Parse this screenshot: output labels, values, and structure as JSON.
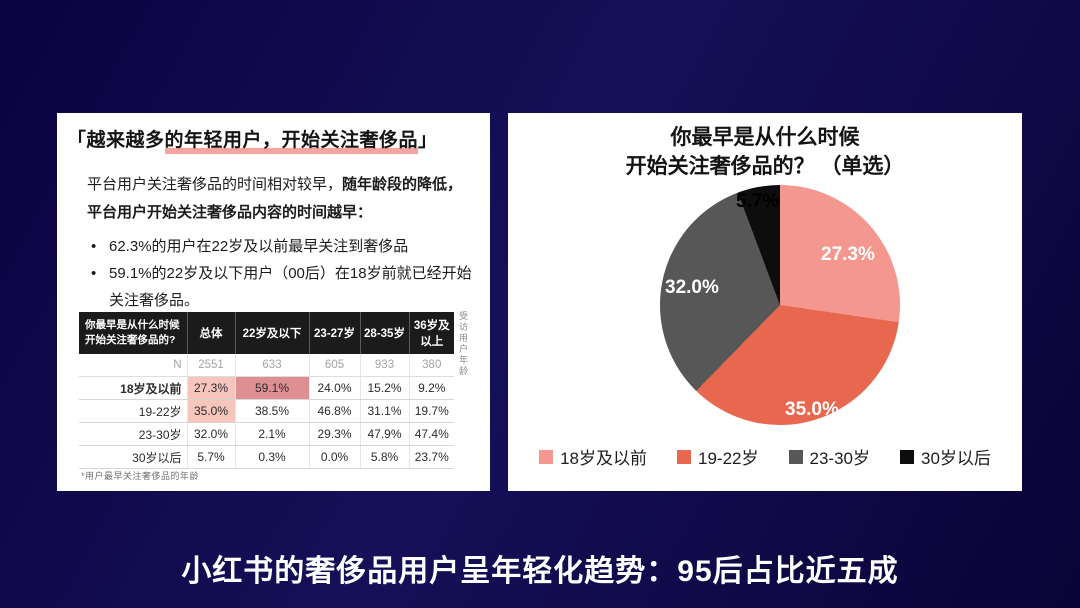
{
  "colors": {
    "highlight_light": "#f6c5bc",
    "highlight_dark": "#de8f92",
    "title_underline": "#f3948f",
    "background_navy": "#0e0647"
  },
  "caption": "小红书的奢侈品用户呈年轻化趋势：95后占比近五成",
  "left_panel": {
    "title_prefix": "「越来越多",
    "title_highlight": "的年轻用户，开始关注奢侈品",
    "title_suffix": "」",
    "para_normal": "平台用户关注奢侈品的时间相对较早，",
    "para_bold": "随年龄段的降低，平台用户开始关注奢侈品内容的时间越早：",
    "bullet_1": "62.3%的用户在22岁及以前最早关注到奢侈品",
    "bullet_2": "59.1%的22岁及以下用户（00后）在18岁前就已经开始关注奢侈品。",
    "table": {
      "question_line1": "你最早是从什么时候",
      "question_line2": "开始关注奢侈品的?",
      "headers": [
        "总体",
        "22岁及以下",
        "23-27岁",
        "28-35岁",
        "36岁及以上"
      ],
      "n_label": "N",
      "n_values": [
        "2551",
        "633",
        "605",
        "933",
        "380"
      ],
      "rows": [
        {
          "label": "18岁及以前",
          "values": [
            "27.3%",
            "59.1%",
            "24.0%",
            "15.2%",
            "9.2%"
          ]
        },
        {
          "label": "19-22岁",
          "values": [
            "35.0%",
            "38.5%",
            "46.8%",
            "31.1%",
            "19.7%"
          ]
        },
        {
          "label": "23-30岁",
          "values": [
            "32.0%",
            "2.1%",
            "29.3%",
            "47.9%",
            "47.4%"
          ]
        },
        {
          "label": "30岁以后",
          "values": [
            "5.7%",
            "0.3%",
            "0.0%",
            "5.8%",
            "23.7%"
          ]
        }
      ],
      "footnote": "*用户最早关注奢侈品的年龄",
      "side_note": "受访用户年龄"
    }
  },
  "right_panel": {
    "title_line1": "你最早是从什么时候",
    "title_line2": "开始关注奢侈品的？ （单选）",
    "pie_value_labels": {
      "pink": "27.3%",
      "red": "35.0%",
      "gray": "32.0%",
      "black": "5.7%"
    },
    "legend": [
      {
        "label": "18岁及以前",
        "color": "#f4978f"
      },
      {
        "label": "19-22岁",
        "color": "#e8684f"
      },
      {
        "label": "23-30岁",
        "color": "#575757"
      },
      {
        "label": "30岁以后",
        "color": "#0d0d0d"
      }
    ]
  },
  "chart_data": [
    {
      "type": "pie",
      "title": "你最早是从什么时候开始关注奢侈品的？（单选）",
      "labels": [
        "18岁及以前",
        "19-22岁",
        "23-30岁",
        "30岁以后"
      ],
      "values": [
        27.3,
        35.0,
        32.0,
        5.7
      ],
      "colors": [
        "#f4978f",
        "#e8684f",
        "#575757",
        "#0d0d0d"
      ],
      "start_angle_deg": 0,
      "direction": "clockwise",
      "legend_position": "bottom",
      "data_labels": [
        "27.3%",
        "35.0%",
        "32.0%",
        "5.7%"
      ]
    },
    {
      "type": "table",
      "title": "你最早是从什么时候开始关注奢侈品的?",
      "columns": [
        "总体",
        "22岁及以下",
        "23-27岁",
        "28-35岁",
        "36岁及以上"
      ],
      "sample_sizes": [
        2551,
        633,
        605,
        933,
        380
      ],
      "row_labels": [
        "18岁及以前",
        "19-22岁",
        "23-30岁",
        "30岁以后"
      ],
      "rows": [
        [
          27.3,
          59.1,
          24.0,
          15.2,
          9.2
        ],
        [
          35.0,
          38.5,
          46.8,
          31.1,
          19.7
        ],
        [
          32.0,
          2.1,
          29.3,
          47.9,
          47.4
        ],
        [
          5.7,
          0.3,
          0.0,
          5.8,
          23.7
        ]
      ],
      "highlighted_cells": [
        {
          "row": "18岁及以前",
          "col": "总体",
          "style": "light-pink"
        },
        {
          "row": "19-22岁",
          "col": "总体",
          "style": "light-pink"
        },
        {
          "row": "18岁及以前",
          "col": "22岁及以下",
          "style": "dark-pink"
        }
      ]
    }
  ]
}
